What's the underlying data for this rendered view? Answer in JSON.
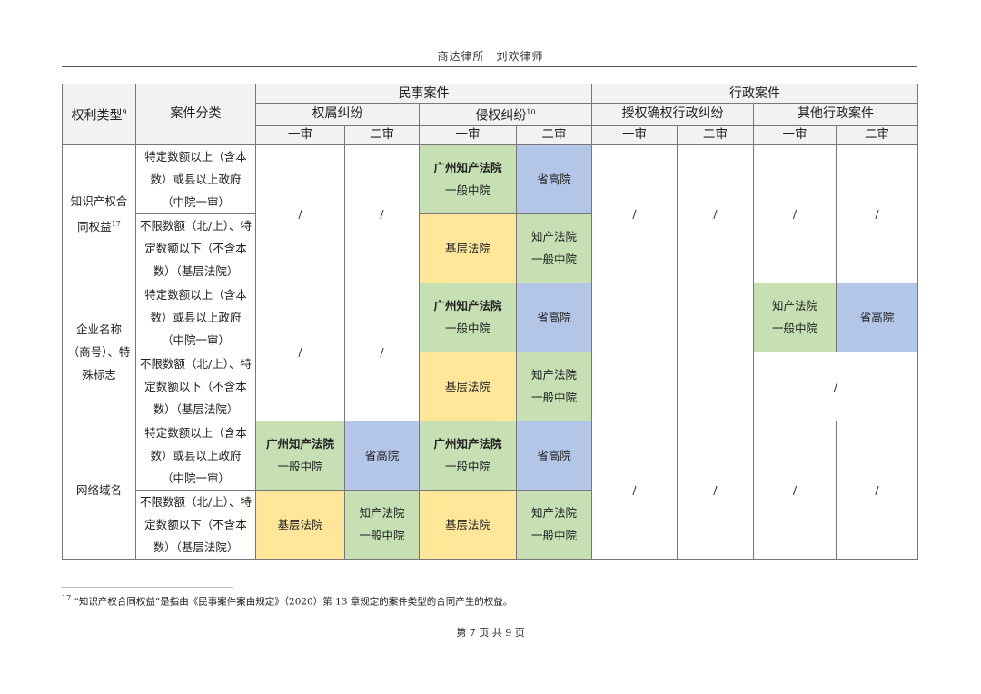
{
  "header": "商达律所　刘欢律师",
  "colors": {
    "green": "#c6e0b4",
    "blue": "#b4c6e7",
    "yellow": "#ffe699",
    "header_bg": "#f2f2f2"
  },
  "table": {
    "h_right_type": "权利类型",
    "h_right_type_sup": "9",
    "h_case_class": "案件分类",
    "h_civil": "民事案件",
    "h_admin": "行政案件",
    "h_ownership": "权属纠纷",
    "h_infringe": "侵权纠纷",
    "h_infringe_sup": "10",
    "h_grant": "授权确权行政纠纷",
    "h_other_admin": "其他行政案件",
    "first": "一审",
    "second": "二审",
    "slash": "/",
    "above": "特定数额以上（含本数）或县以上政府（中院一审）",
    "below": "不限数额（北/上）、特定数额以下（不含本数）（基层法院）",
    "gz": "广州知产法院",
    "general": "一般中院",
    "ip": "知产法院",
    "high": "省高院",
    "basic": "基层法院",
    "g1": "知识产权合同权益",
    "g1_sup": "17",
    "g2": "企业名称（商号）、特殊标志",
    "g3": "网络域名"
  },
  "footnote": {
    "num": "17",
    "text": "“知识产权合同权益”是指由《民事案件案由规定》（2020）第 13 章规定的案件类型的合同产生的权益。"
  },
  "page": "第 7 页 共 9 页"
}
